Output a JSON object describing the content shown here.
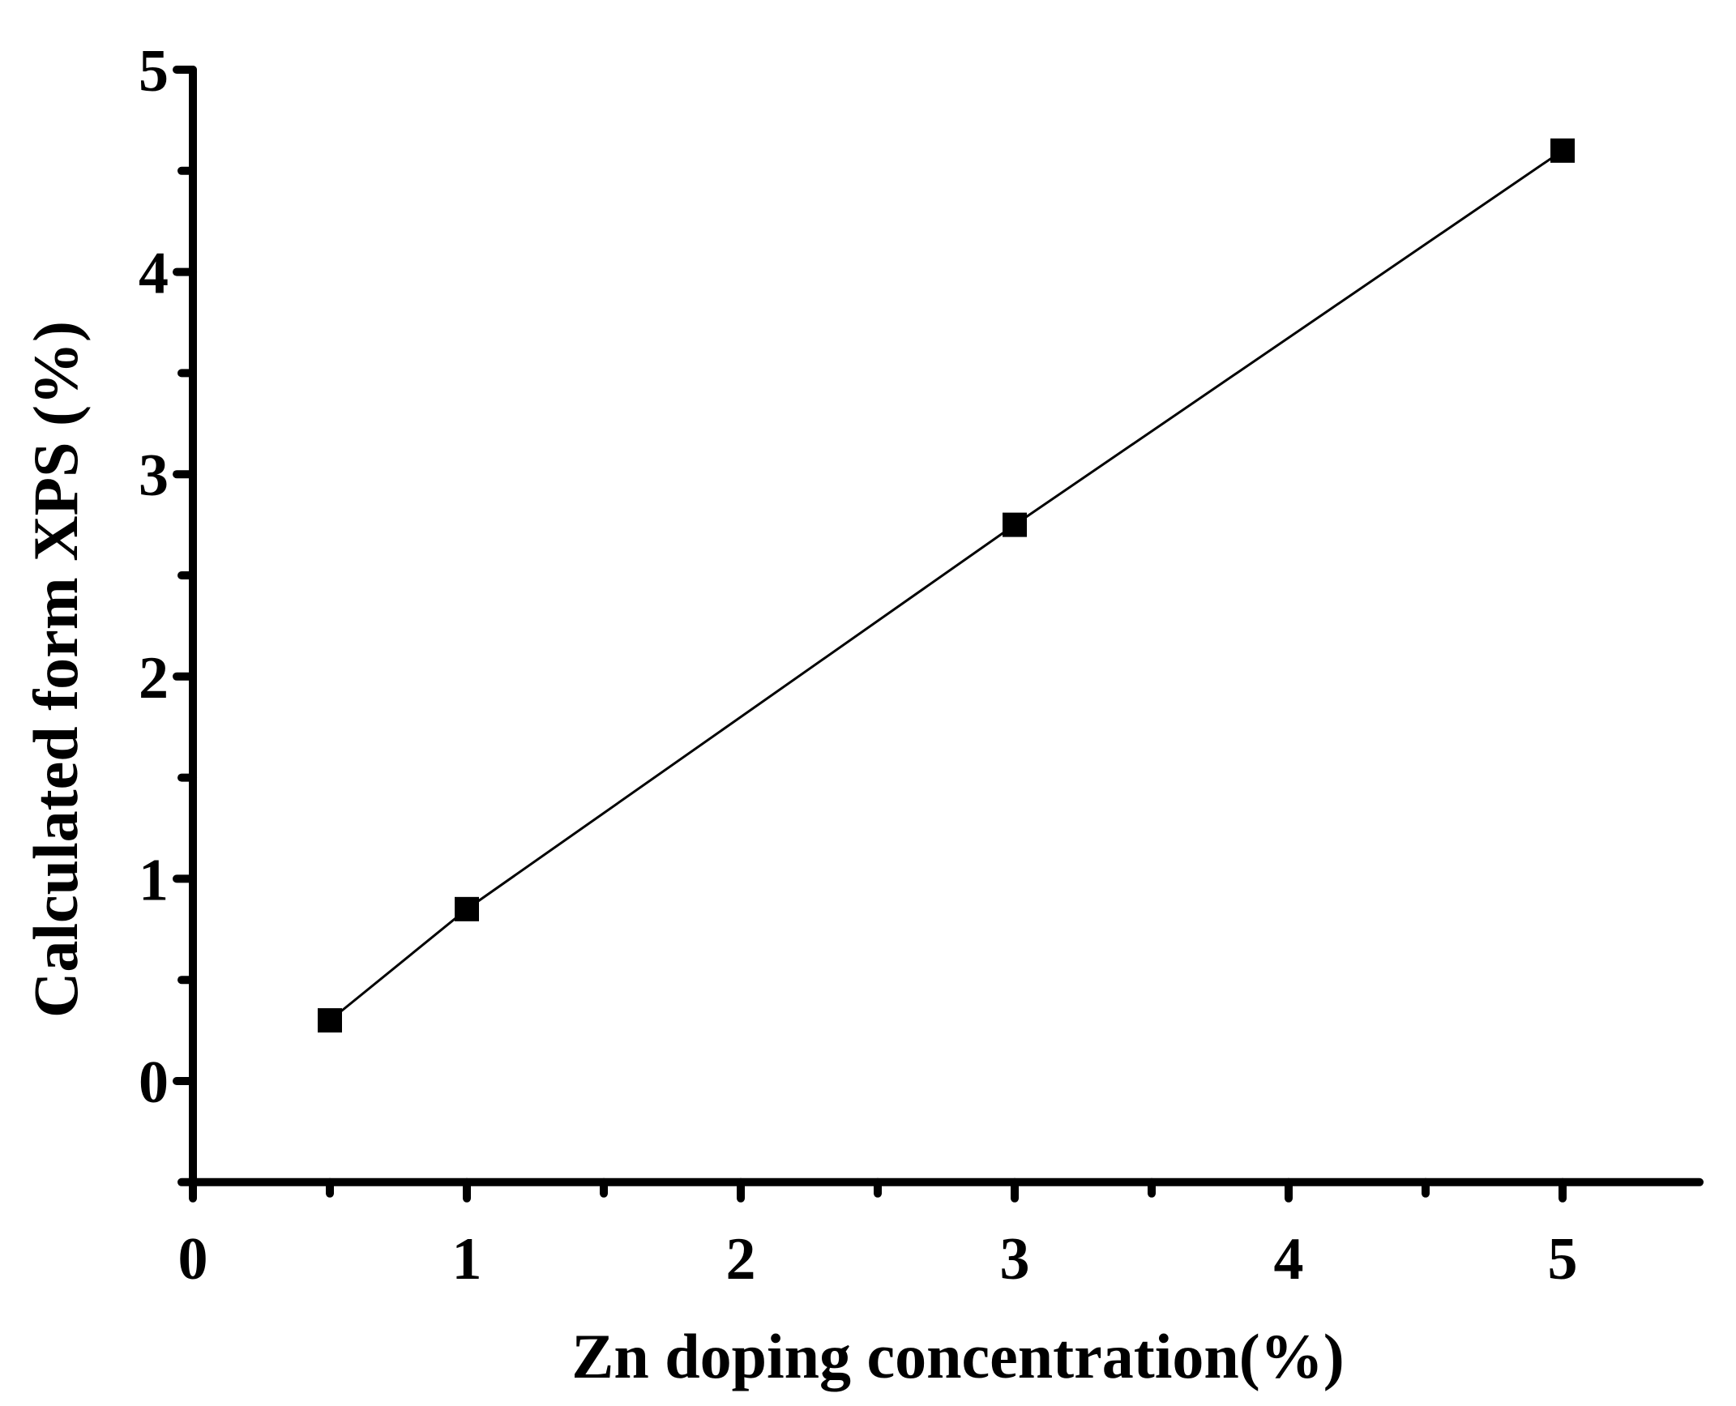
{
  "chart_data": {
    "type": "line",
    "title": "",
    "xlabel": "Zn doping concentration(%)",
    "ylabel": "Calculated form XPS (%)",
    "xlim": [
      0,
      5.5
    ],
    "ylim": [
      -0.5,
      5
    ],
    "x_ticks": [
      0,
      1,
      2,
      3,
      4,
      5
    ],
    "x_tick_labels": [
      "0",
      "1",
      "2",
      "3",
      "4",
      "5"
    ],
    "y_ticks": [
      0,
      1,
      2,
      3,
      4,
      5
    ],
    "y_tick_labels": [
      "0",
      "1",
      "2",
      "3",
      "4",
      "5"
    ],
    "x_minor_ticks": [
      0.5,
      1.5,
      2.5,
      3.5,
      4.5
    ],
    "y_minor_ticks": [
      -0.5,
      0.5,
      1.5,
      2.5,
      3.5,
      4.5
    ],
    "grid": false,
    "legend": "none",
    "marker": "filled-square",
    "line_color": "#000000",
    "marker_color": "#000000",
    "series": [
      {
        "x": [
          0.5,
          1,
          3,
          5
        ],
        "y": [
          0.3,
          0.85,
          2.75,
          4.6
        ]
      }
    ]
  }
}
